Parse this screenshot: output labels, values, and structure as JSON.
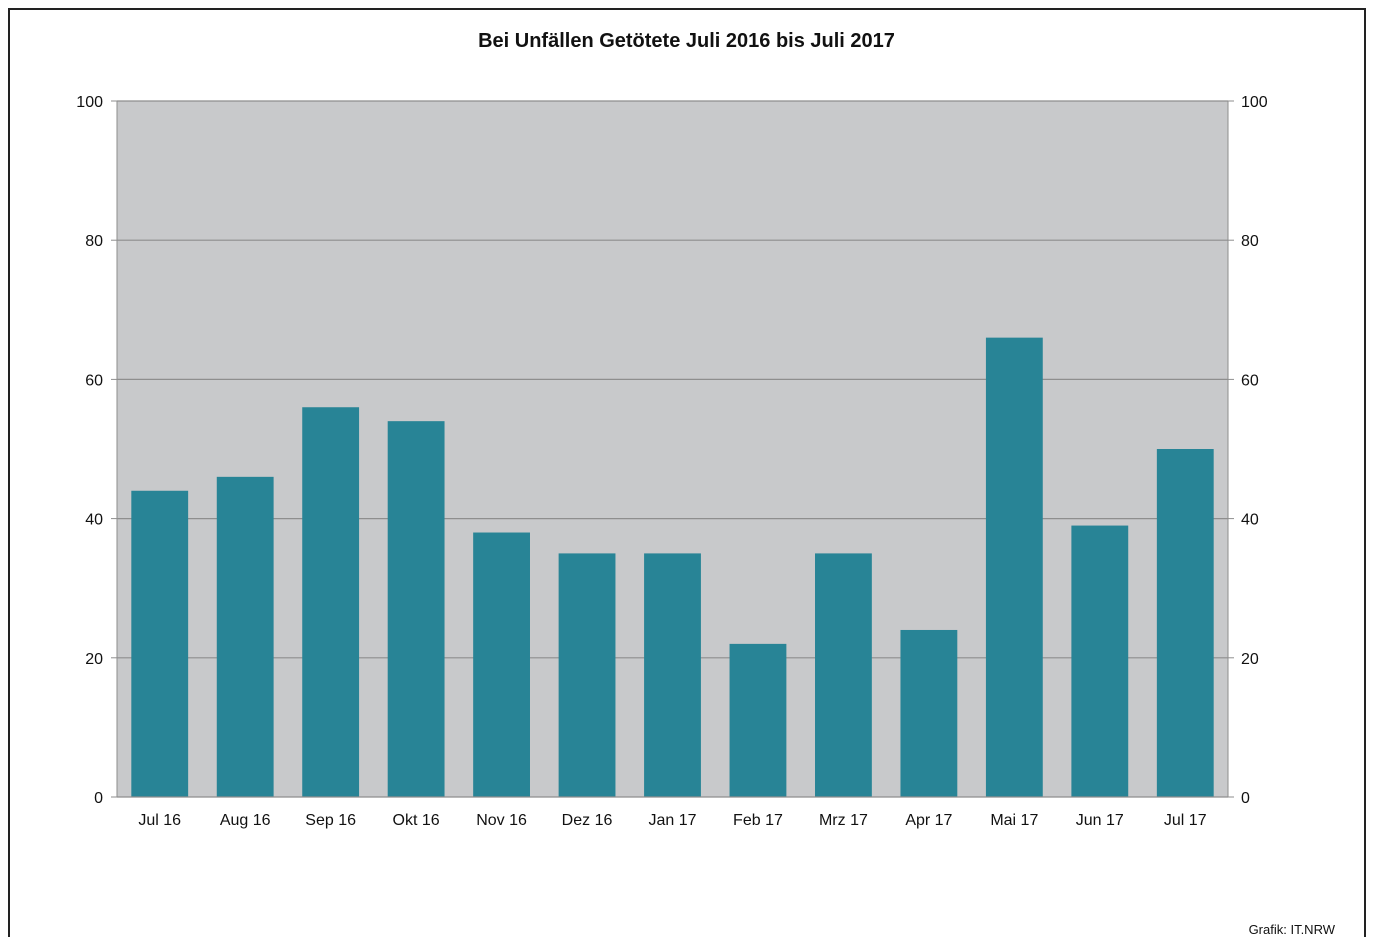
{
  "chart_data": {
    "type": "bar",
    "title": "Bei Unfällen Getötete Juli 2016 bis Juli 2017",
    "categories": [
      "Jul 16",
      "Aug 16",
      "Sep 16",
      "Okt 16",
      "Nov 16",
      "Dez 16",
      "Jan 17",
      "Feb 17",
      "Mrz 17",
      "Apr 17",
      "Mai 17",
      "Jun 17",
      "Jul 17"
    ],
    "values": [
      44,
      46,
      56,
      54,
      38,
      35,
      35,
      22,
      35,
      24,
      66,
      39,
      50
    ],
    "ylim": [
      0,
      100
    ],
    "yticks": [
      0,
      20,
      40,
      60,
      80,
      100
    ],
    "secondary_y_axis": true,
    "grid": true,
    "xlabel": "",
    "ylabel": "",
    "colors": {
      "bar": "#288496",
      "plot_background": "#c8c9cb",
      "gridline": "#8e8e8e"
    }
  },
  "source_credit": "Grafik: IT.NRW"
}
